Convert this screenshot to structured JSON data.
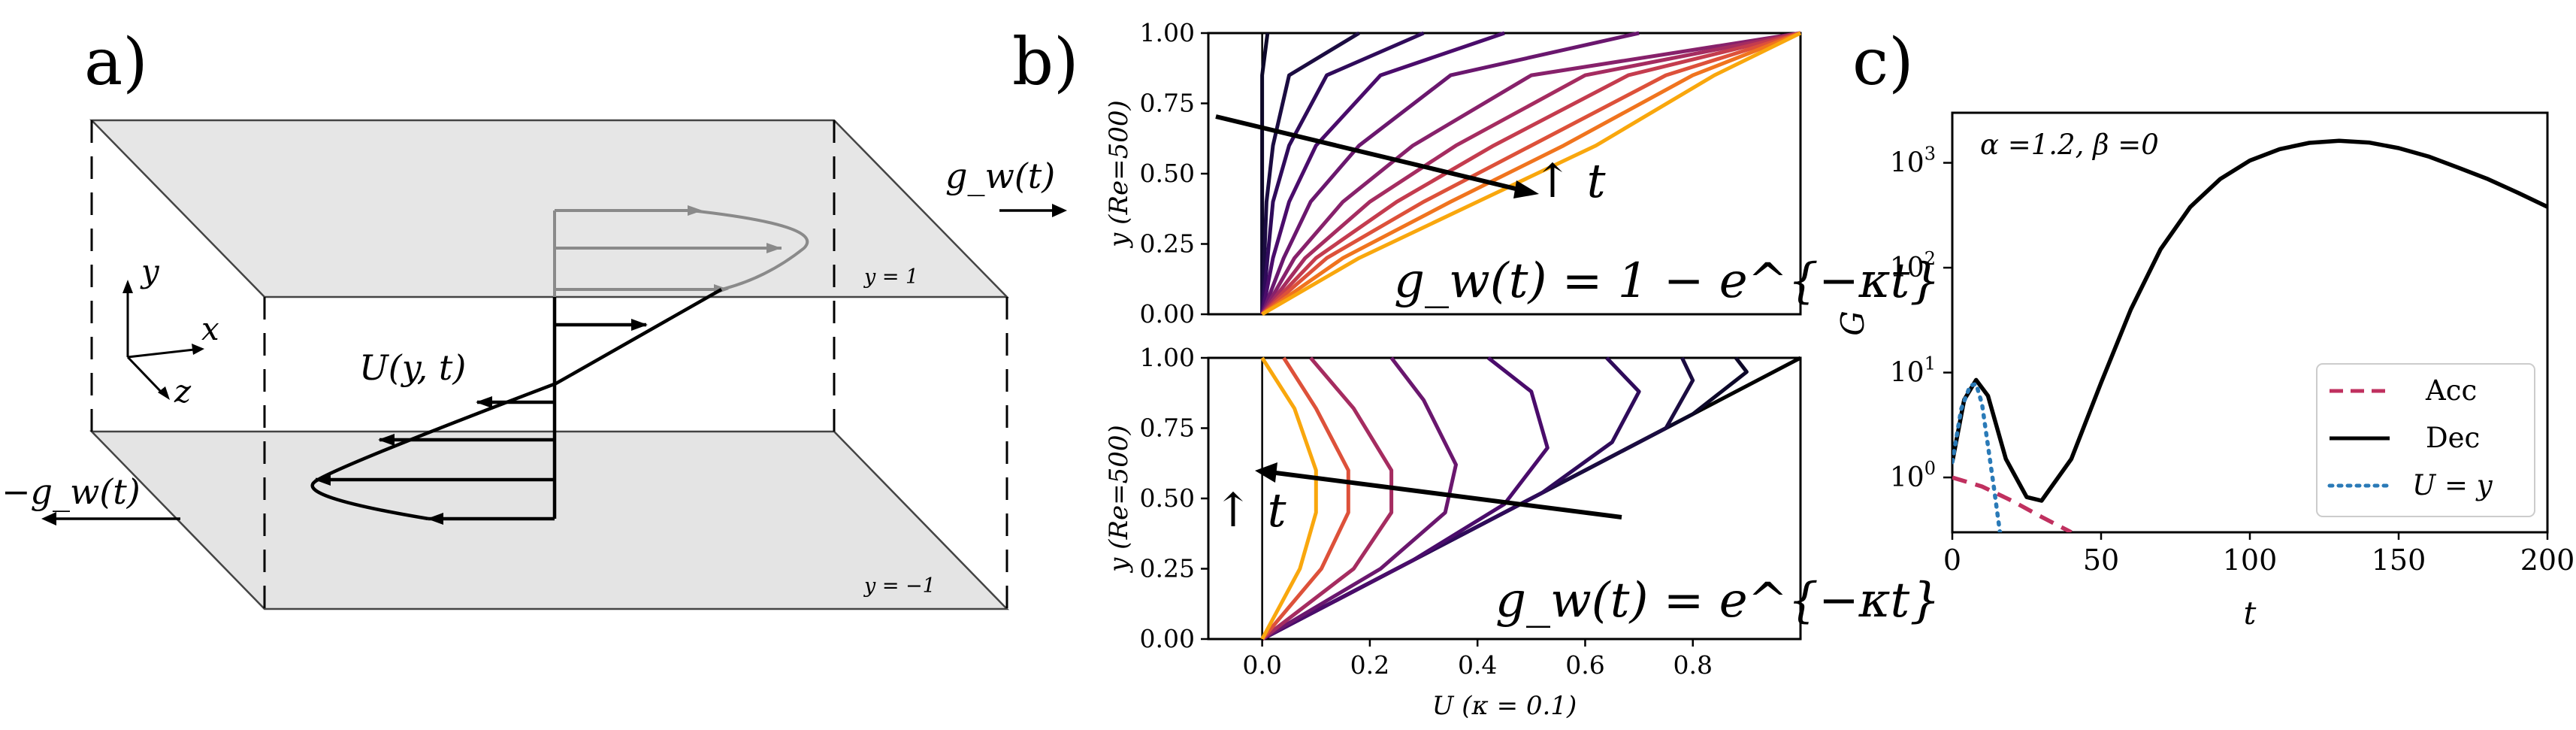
{
  "panel_a": {
    "letter": "a)",
    "labels": {
      "gw_right": "g_w(t)",
      "gw_left": "−g_w(t)",
      "profile": "U(y, t)",
      "y_top": "y = 1",
      "y_bottom": "y = −1",
      "axis_y": "y",
      "axis_x": "x",
      "axis_z": "z"
    }
  },
  "panel_b": {
    "letter": "b)",
    "top": {
      "equation": "g_w(t) = 1 − e^{−κt}",
      "ylabel": "y (Re=500)",
      "arrow_label": "↑ t",
      "yticks": [
        "0.00",
        "0.25",
        "0.50",
        "0.75",
        "1.00"
      ]
    },
    "bottom": {
      "equation": "g_w(t) = e^{−κt}",
      "ylabel": "y (Re=500)",
      "arrow_label": "↑ t",
      "xlabel": "U (κ = 0.1)",
      "xticks": [
        "0.0",
        "0.2",
        "0.4",
        "0.6",
        "0.8"
      ],
      "yticks": [
        "0.00",
        "0.25",
        "0.50",
        "0.75",
        "1.00"
      ]
    }
  },
  "panel_c": {
    "letter": "c)",
    "annotation": "α =1.2, β =0",
    "xlabel": "t",
    "ylabel": "G",
    "xticks": [
      "0",
      "50",
      "100",
      "150",
      "200"
    ],
    "yticks": [
      "10^0",
      "10^1",
      "10^2",
      "10^3"
    ],
    "legend": [
      {
        "label": "Acc",
        "color": "#c0305f",
        "style": "dashed"
      },
      {
        "label": "Dec",
        "color": "#000000",
        "style": "solid"
      },
      {
        "label": "U = y",
        "color": "#2a7ab7",
        "style": "dotted"
      }
    ]
  },
  "chart_data": [
    {
      "type": "line",
      "panel": "b-top",
      "xlabel": "U (κ = 0.1)",
      "ylabel": "y (Re=500)",
      "xlim": [
        -0.1,
        1.0
      ],
      "ylim": [
        0.0,
        1.0
      ],
      "title": "g_w(t) = 1 − e^{−κt}",
      "series": [
        {
          "color": "#0d0829",
          "x": [
            0.0,
            0.0,
            0.0,
            0.0,
            0.0,
            0.01
          ],
          "y": [
            0.0,
            0.2,
            0.4,
            0.6,
            0.85,
            1.0
          ]
        },
        {
          "color": "#1b0c41",
          "x": [
            0.0,
            0.004,
            0.008,
            0.02,
            0.05,
            0.18
          ],
          "y": [
            0.0,
            0.2,
            0.4,
            0.6,
            0.85,
            1.0
          ]
        },
        {
          "color": "#2f0b5a",
          "x": [
            0.0,
            0.01,
            0.02,
            0.05,
            0.12,
            0.3
          ],
          "y": [
            0.0,
            0.2,
            0.4,
            0.6,
            0.85,
            1.0
          ]
        },
        {
          "color": "#4a0c6b",
          "x": [
            0.0,
            0.02,
            0.05,
            0.1,
            0.22,
            0.45
          ],
          "y": [
            0.0,
            0.2,
            0.4,
            0.6,
            0.85,
            1.0
          ]
        },
        {
          "color": "#6a176e",
          "x": [
            0.0,
            0.04,
            0.09,
            0.18,
            0.35,
            0.7
          ],
          "y": [
            0.0,
            0.2,
            0.4,
            0.6,
            0.85,
            1.0
          ]
        },
        {
          "color": "#87216b",
          "x": [
            0.0,
            0.06,
            0.15,
            0.28,
            0.5,
            1.0
          ],
          "y": [
            0.0,
            0.2,
            0.4,
            0.6,
            0.85,
            1.0
          ]
        },
        {
          "color": "#a52c60",
          "x": [
            0.0,
            0.08,
            0.2,
            0.36,
            0.6,
            1.0
          ],
          "y": [
            0.0,
            0.2,
            0.4,
            0.6,
            0.85,
            1.0
          ]
        },
        {
          "color": "#c43c4e",
          "x": [
            0.0,
            0.1,
            0.25,
            0.43,
            0.68,
            1.0
          ],
          "y": [
            0.0,
            0.2,
            0.4,
            0.6,
            0.85,
            1.0
          ]
        },
        {
          "color": "#dd513a",
          "x": [
            0.0,
            0.12,
            0.3,
            0.5,
            0.75,
            1.0
          ],
          "y": [
            0.0,
            0.2,
            0.4,
            0.6,
            0.85,
            1.0
          ]
        },
        {
          "color": "#f0741e",
          "x": [
            0.0,
            0.15,
            0.35,
            0.56,
            0.8,
            1.0
          ],
          "y": [
            0.0,
            0.2,
            0.4,
            0.6,
            0.85,
            1.0
          ]
        },
        {
          "color": "#f9a70d",
          "x": [
            0.0,
            0.18,
            0.4,
            0.62,
            0.84,
            1.0
          ],
          "y": [
            0.0,
            0.2,
            0.4,
            0.6,
            0.85,
            1.0
          ]
        }
      ]
    },
    {
      "type": "line",
      "panel": "b-bottom",
      "xlabel": "U (κ = 0.1)",
      "ylabel": "y (Re=500)",
      "xlim": [
        -0.1,
        1.0
      ],
      "ylim": [
        0.0,
        1.0
      ],
      "title": "g_w(t) = e^{−κt}",
      "series": [
        {
          "color": "#000000",
          "x": [
            0.0,
            1.0
          ],
          "y": [
            0.0,
            1.0
          ]
        },
        {
          "color": "#0d0829",
          "x": [
            0.0,
            0.3,
            0.6,
            0.8,
            0.9,
            0.88
          ],
          "y": [
            0.0,
            0.3,
            0.6,
            0.8,
            0.95,
            1.0
          ]
        },
        {
          "color": "#1b0c41",
          "x": [
            0.0,
            0.3,
            0.6,
            0.75,
            0.8,
            0.78
          ],
          "y": [
            0.0,
            0.3,
            0.6,
            0.75,
            0.92,
            1.0
          ]
        },
        {
          "color": "#2f0b5a",
          "x": [
            0.0,
            0.3,
            0.52,
            0.65,
            0.7,
            0.64
          ],
          "y": [
            0.0,
            0.3,
            0.52,
            0.7,
            0.88,
            1.0
          ]
        },
        {
          "color": "#4a0c6b",
          "x": [
            0.0,
            0.28,
            0.45,
            0.53,
            0.5,
            0.42
          ],
          "y": [
            0.0,
            0.28,
            0.48,
            0.68,
            0.88,
            1.0
          ]
        },
        {
          "color": "#6a176e",
          "x": [
            0.0,
            0.22,
            0.34,
            0.36,
            0.3,
            0.24
          ],
          "y": [
            0.0,
            0.25,
            0.45,
            0.62,
            0.85,
            1.0
          ]
        },
        {
          "color": "#a52c60",
          "x": [
            0.0,
            0.17,
            0.24,
            0.24,
            0.17,
            0.09
          ],
          "y": [
            0.0,
            0.25,
            0.45,
            0.6,
            0.82,
            1.0
          ]
        },
        {
          "color": "#dd513a",
          "x": [
            0.0,
            0.11,
            0.16,
            0.16,
            0.1,
            0.04
          ],
          "y": [
            0.0,
            0.25,
            0.45,
            0.6,
            0.82,
            1.0
          ]
        },
        {
          "color": "#f9a70d",
          "x": [
            0.0,
            0.07,
            0.1,
            0.1,
            0.06,
            0.0
          ],
          "y": [
            0.0,
            0.25,
            0.45,
            0.6,
            0.82,
            1.0
          ]
        }
      ]
    },
    {
      "type": "line",
      "panel": "c",
      "xlabel": "t",
      "ylabel": "G",
      "xlim": [
        0,
        200
      ],
      "ylim": [
        0.3,
        3000
      ],
      "yscale": "log",
      "series": [
        {
          "name": "Acc",
          "color": "#c0305f",
          "style": "dashed",
          "x": [
            0,
            10,
            20,
            30,
            40
          ],
          "y": [
            1.0,
            0.82,
            0.6,
            0.42,
            0.3
          ]
        },
        {
          "name": "Dec",
          "color": "#000000",
          "style": "solid",
          "x": [
            0,
            4,
            8,
            12,
            18,
            25,
            30,
            40,
            50,
            60,
            70,
            80,
            90,
            100,
            110,
            120,
            130,
            140,
            150,
            160,
            170,
            180,
            190,
            200
          ],
          "y": [
            1.4,
            5.5,
            8.5,
            6.0,
            1.5,
            0.65,
            0.6,
            1.5,
            8.0,
            40,
            150,
            380,
            700,
            1050,
            1350,
            1550,
            1620,
            1560,
            1380,
            1150,
            900,
            700,
            520,
            380
          ]
        },
        {
          "name": "U = y",
          "color": "#2a7ab7",
          "style": "dotted",
          "x": [
            0,
            3,
            6,
            8,
            10,
            12,
            14,
            16
          ],
          "y": [
            1.4,
            4.5,
            7.5,
            7.8,
            5.0,
            2.0,
            0.8,
            0.3
          ]
        }
      ]
    }
  ]
}
